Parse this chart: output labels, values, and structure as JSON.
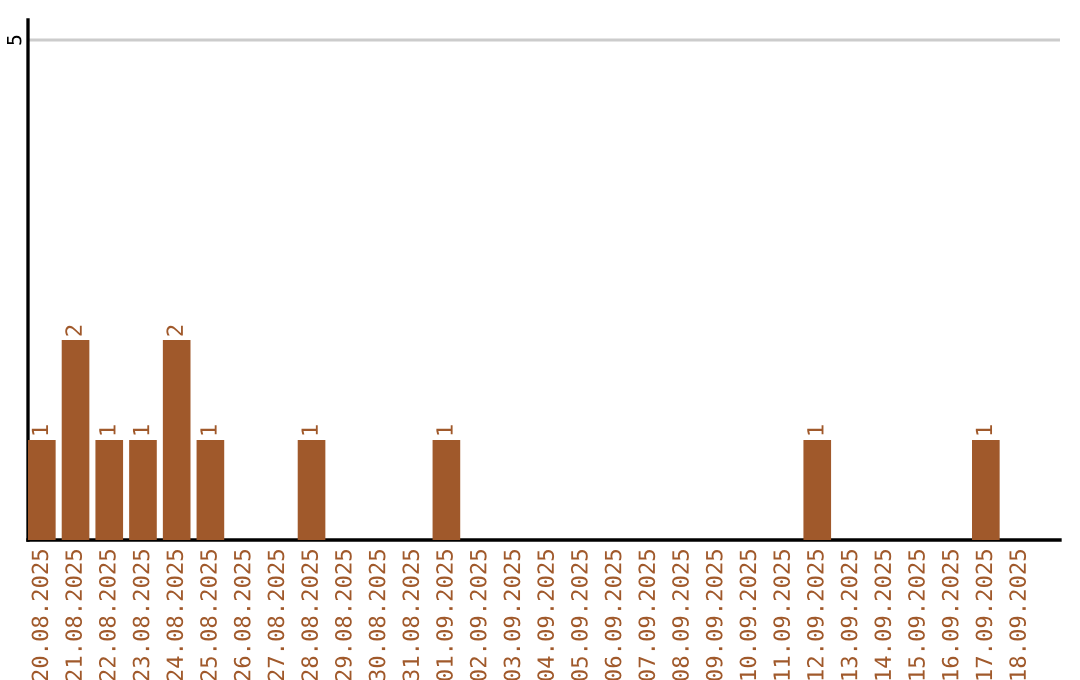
{
  "chart_data": {
    "type": "bar",
    "categories": [
      "20.08.2025",
      "21.08.2025",
      "22.08.2025",
      "23.08.2025",
      "24.08.2025",
      "25.08.2025",
      "26.08.2025",
      "27.08.2025",
      "28.08.2025",
      "29.08.2025",
      "30.08.2025",
      "31.08.2025",
      "01.09.2025",
      "02.09.2025",
      "03.09.2025",
      "04.09.2025",
      "05.09.2025",
      "06.09.2025",
      "07.09.2025",
      "08.09.2025",
      "09.09.2025",
      "10.09.2025",
      "11.09.2025",
      "12.09.2025",
      "13.09.2025",
      "14.09.2025",
      "15.09.2025",
      "16.09.2025",
      "17.09.2025",
      "18.09.2025"
    ],
    "values": [
      1,
      2,
      1,
      1,
      2,
      1,
      0,
      0,
      1,
      0,
      0,
      0,
      1,
      0,
      0,
      0,
      0,
      0,
      0,
      0,
      0,
      0,
      0,
      1,
      0,
      0,
      0,
      0,
      1,
      0
    ],
    "value_labels": [
      "1",
      "2",
      "1",
      "1",
      "2",
      "1",
      null,
      null,
      "1",
      null,
      null,
      null,
      "1",
      null,
      null,
      null,
      null,
      null,
      null,
      null,
      null,
      null,
      null,
      "1",
      null,
      null,
      null,
      null,
      "1",
      null
    ],
    "color": "#a0592b",
    "ylim": [
      0,
      5.2
    ],
    "yticks": [
      5
    ],
    "grid": "y",
    "legend": false
  }
}
